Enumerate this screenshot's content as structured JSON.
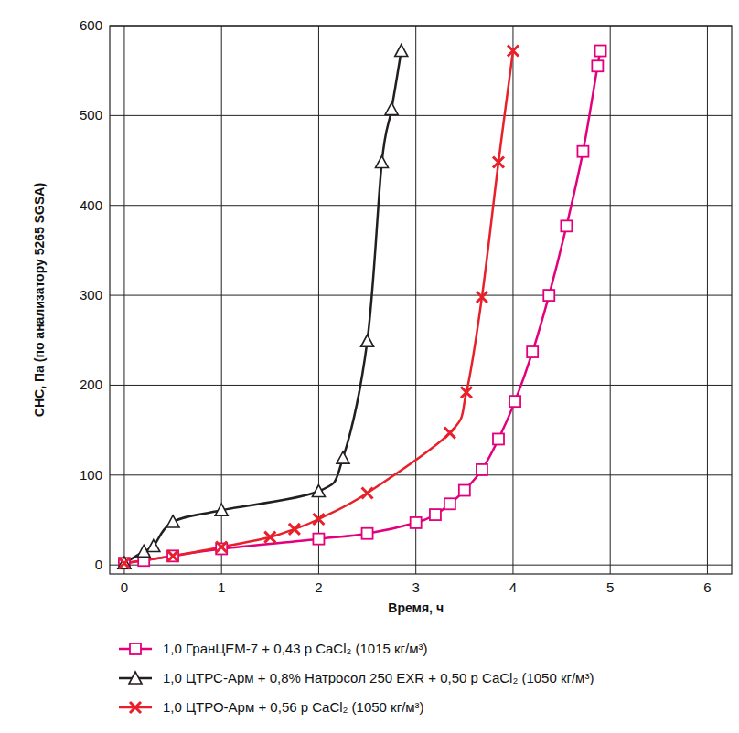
{
  "chart_data": {
    "type": "line",
    "x_label": "Время, ч",
    "y_label": "СНС, Па (по анализатору 5265 SGSA)",
    "xlim": [
      -0.15,
      6.25
    ],
    "ylim": [
      -10,
      600
    ],
    "xticks": [
      0,
      1,
      2,
      3,
      4,
      5,
      6
    ],
    "yticks": [
      0,
      100,
      200,
      300,
      400,
      500,
      600
    ],
    "grid": true,
    "legend": "bottom",
    "series": [
      {
        "name": "1,0 ГранЦЕМ-7 + 0,43 р CaCl₂ (1015 кг/м³)",
        "color": "#e4007c",
        "marker": "square",
        "line_style": "solid",
        "x": [
          0,
          0.2,
          0.5,
          1,
          2,
          2.5,
          3,
          3.2,
          3.35,
          3.5,
          3.68,
          3.85,
          4.02,
          4.2,
          4.37,
          4.55,
          4.72,
          4.87,
          4.9
        ],
        "values": [
          2,
          5,
          10,
          18,
          29,
          35,
          47,
          56,
          68,
          83,
          106,
          140,
          182,
          237,
          300,
          377,
          460,
          555,
          572
        ]
      },
      {
        "name": "1,0 ЦТРС-Арм + 0,8% Натросол 250 EXR + 0,50 р CaCl₂ (1050 кг/м³)",
        "color": "#231f20",
        "marker": "triangle",
        "line_style": "solid",
        "x": [
          0,
          0.2,
          0.3,
          0.5,
          1,
          2,
          2.25,
          2.5,
          2.65,
          2.75,
          2.85
        ],
        "values": [
          2,
          15,
          21,
          48,
          61,
          82,
          119,
          249,
          448,
          507,
          572
        ]
      },
      {
        "name": "1,0 ЦТРО-Арм + 0,56 р CaCl₂ (1050 кг/м³)",
        "color": "#e8202a",
        "marker": "x",
        "line_style": "solid",
        "x": [
          0,
          0.5,
          1,
          1.5,
          1.75,
          2,
          2.5,
          3.35,
          3.52,
          3.68,
          3.85,
          4
        ],
        "values": [
          2,
          10,
          20,
          31,
          40,
          51,
          80,
          147,
          192,
          298,
          448,
          572
        ]
      }
    ]
  }
}
